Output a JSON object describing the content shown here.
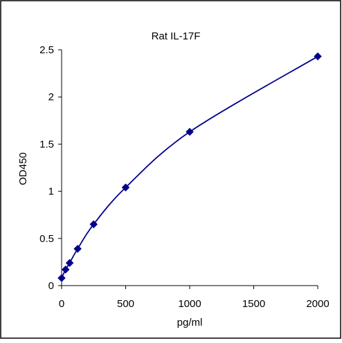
{
  "chart_data": {
    "type": "scatter",
    "title": "Rat  IL-17F",
    "xlabel": "pg/ml",
    "ylabel": "OD450",
    "xlim": [
      0,
      2000
    ],
    "ylim": [
      0,
      2.5
    ],
    "x_ticks": [
      "0",
      "500",
      "1000",
      "1500",
      "2000"
    ],
    "y_ticks": [
      "0",
      "0.5",
      "1",
      "1.5",
      "2",
      "2.5"
    ],
    "grid": false,
    "legend": "none",
    "series": [
      {
        "x": [
          0,
          31.25,
          62.5,
          125,
          250,
          500,
          1000,
          2000
        ],
        "y": [
          0.08,
          0.17,
          0.24,
          0.39,
          0.65,
          1.04,
          1.63,
          2.43
        ],
        "marker": "diamond",
        "line": "smooth",
        "color": "#00008B"
      }
    ]
  }
}
